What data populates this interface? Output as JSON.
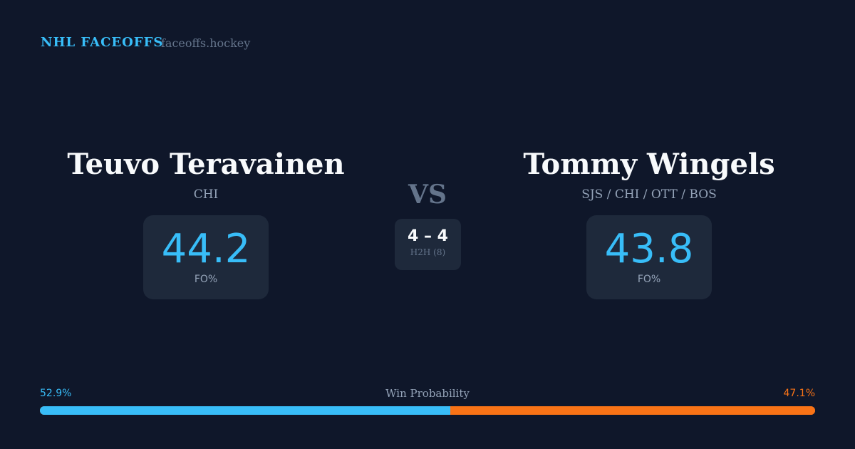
{
  "header": {
    "brand": "NHL FACEOFFS",
    "site": "faceoffs.hockey"
  },
  "player_left": {
    "name": "Teuvo Teravainen",
    "team": "CHI",
    "fo_pct": "44.2",
    "fo_label": "FO%"
  },
  "player_right": {
    "name": "Tommy Wingels",
    "team": "SJS / CHI / OTT / BOS",
    "fo_pct": "43.8",
    "fo_label": "FO%"
  },
  "vs": "VS",
  "h2h": {
    "record": "4 – 4",
    "label": "H2H (8)"
  },
  "win_probability": {
    "label": "Win Probability",
    "left": "52.9%",
    "right": "47.1%",
    "left_value": 52.9,
    "left_color": "#38bdf8",
    "right_color": "#f97316"
  }
}
